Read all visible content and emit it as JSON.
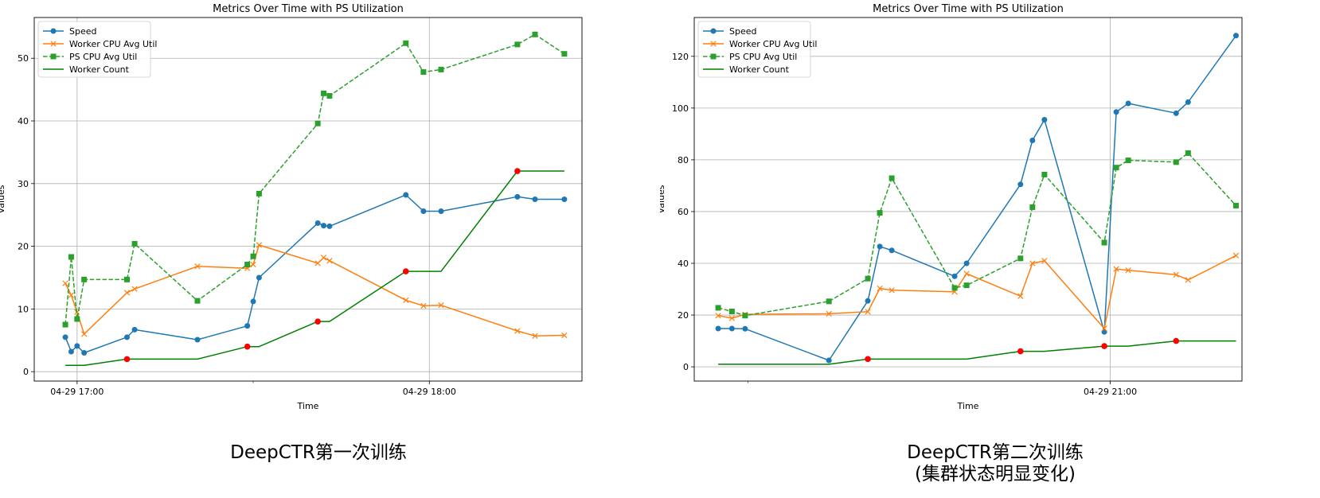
{
  "captions": {
    "left": "DeepCTR第一次训练",
    "right_line1": "DeepCTR第二次训练",
    "right_line2": "(集群状态明显变化)"
  },
  "colors": {
    "speed": "#1f77b4",
    "worker_cpu": "#ff7f0e",
    "ps_cpu": "#2ca02c",
    "worker_count": "#008000",
    "change_marker": "#ff0000"
  },
  "chart_data": [
    {
      "type": "line",
      "title": "Metrics Over Time with PS Utilization",
      "xlabel": "Time",
      "ylabel": "Values",
      "grid": true,
      "legend_position": "top-left",
      "x_ticks": [
        {
          "x": 0,
          "label": "04-29 17:00"
        },
        {
          "x": 60,
          "label": "04-29 18:00"
        }
      ],
      "x_minor_ticks": [
        30
      ],
      "xlim": [
        -7.3,
        86
      ],
      "ylim": [
        -1.5,
        56.5
      ],
      "y_ticks": [
        0,
        10,
        20,
        30,
        40,
        50
      ],
      "series": [
        {
          "name": "Speed",
          "style": "solid",
          "marker": "circle",
          "x": [
            -2,
            -1,
            0,
            1.2,
            8.5,
            9.8,
            20.5,
            29,
            30,
            31,
            41,
            42,
            43,
            56,
            59,
            62,
            75,
            78,
            83
          ],
          "y": [
            5.5,
            3.2,
            4.1,
            3.0,
            5.5,
            6.7,
            5.1,
            7.3,
            11.2,
            15.0,
            23.7,
            23.3,
            23.2,
            28.2,
            25.6,
            25.6,
            27.9,
            27.5,
            27.5
          ]
        },
        {
          "name": "Worker CPU Avg Util",
          "style": "solid",
          "marker": "x",
          "x": [
            -2,
            -1,
            0,
            1.2,
            8.5,
            9.8,
            20.5,
            29,
            30,
            31,
            41,
            42,
            43,
            56,
            59,
            62,
            75,
            78,
            83
          ],
          "y": [
            14.1,
            12.2,
            9.5,
            6.0,
            12.6,
            13.2,
            16.8,
            16.5,
            17.1,
            20.2,
            17.3,
            18.2,
            17.7,
            11.4,
            10.5,
            10.6,
            6.5,
            5.7,
            5.8
          ]
        },
        {
          "name": "PS CPU Avg Util",
          "style": "dashed",
          "marker": "square",
          "x": [
            -2,
            -1,
            0,
            1.2,
            8.5,
            9.8,
            20.5,
            29,
            30,
            31,
            41,
            42,
            43,
            56,
            59,
            62,
            75,
            78,
            83
          ],
          "y": [
            7.5,
            18.3,
            8.4,
            14.7,
            14.7,
            20.4,
            11.3,
            17.1,
            18.4,
            28.4,
            39.6,
            44.4,
            44.0,
            52.4,
            47.8,
            48.2,
            52.2,
            53.8,
            50.7
          ]
        },
        {
          "name": "Worker Count",
          "style": "solid",
          "marker": "none",
          "x": [
            -2,
            1.2,
            8.5,
            20.5,
            29,
            31,
            41,
            43,
            56,
            62,
            75,
            83
          ],
          "y": [
            1,
            1,
            2,
            2,
            4,
            4,
            8,
            8,
            16,
            16,
            32,
            32
          ]
        }
      ],
      "change_points": {
        "x": [
          8.5,
          29,
          41,
          56,
          75
        ],
        "y": [
          2,
          4,
          8,
          16,
          32
        ]
      }
    },
    {
      "type": "line",
      "title": "Metrics Over Time with PS Utilization",
      "xlabel": "Time",
      "ylabel": "Values",
      "grid": true,
      "legend_position": "top-left",
      "x_ticks": [
        {
          "x": 60,
          "label": "04-29 21:00"
        }
      ],
      "x_minor_ticks": [
        -0.5
      ],
      "xlim": [
        -9.5,
        82
      ],
      "ylim": [
        -5.5,
        135
      ],
      "y_ticks": [
        0,
        20,
        40,
        60,
        80,
        100,
        120
      ],
      "series": [
        {
          "name": "Speed",
          "style": "solid",
          "marker": "circle",
          "x": [
            -5.5,
            -3.2,
            -1,
            13,
            19.5,
            21.5,
            23.5,
            34,
            36,
            45,
            47,
            49,
            59,
            61,
            63,
            71,
            73,
            81
          ],
          "y": [
            14.8,
            14.8,
            14.7,
            2.5,
            25.5,
            46.5,
            45.0,
            35.0,
            40.0,
            70.5,
            87.5,
            95.5,
            13.5,
            98.5,
            101.8,
            98.0,
            102.3,
            128.0
          ]
        },
        {
          "name": "Worker CPU Avg Util",
          "style": "solid",
          "marker": "x",
          "x": [
            -5.5,
            -3.2,
            -1,
            13,
            19.5,
            21.5,
            23.5,
            34,
            36,
            45,
            47,
            49,
            59,
            61,
            63,
            71,
            73,
            81
          ],
          "y": [
            19.8,
            18.8,
            20.3,
            20.5,
            21.3,
            30.3,
            29.6,
            29.0,
            36.0,
            27.3,
            40.0,
            41.0,
            14.8,
            37.8,
            37.3,
            35.6,
            33.6,
            43.0
          ]
        },
        {
          "name": "PS CPU Avg Util",
          "style": "dashed",
          "marker": "square",
          "x": [
            -5.5,
            -3.2,
            -1,
            13,
            19.5,
            21.5,
            23.5,
            34,
            36,
            45,
            47,
            49,
            59,
            61,
            63,
            71,
            73,
            81
          ],
          "y": [
            22.8,
            21.4,
            19.8,
            25.3,
            34.1,
            59.5,
            72.9,
            30.5,
            31.5,
            41.9,
            61.7,
            74.3,
            48.0,
            77.0,
            79.8,
            79.1,
            82.6,
            62.3
          ]
        },
        {
          "name": "Worker Count",
          "style": "solid",
          "marker": "none",
          "x": [
            -5.5,
            13,
            19.5,
            36,
            45,
            49,
            59,
            63,
            71,
            81
          ],
          "y": [
            1,
            1,
            3,
            3,
            6,
            6,
            8,
            8,
            10,
            10
          ]
        }
      ],
      "change_points": {
        "x": [
          19.5,
          45,
          59,
          71
        ],
        "y": [
          3,
          6,
          8,
          10
        ]
      }
    }
  ]
}
